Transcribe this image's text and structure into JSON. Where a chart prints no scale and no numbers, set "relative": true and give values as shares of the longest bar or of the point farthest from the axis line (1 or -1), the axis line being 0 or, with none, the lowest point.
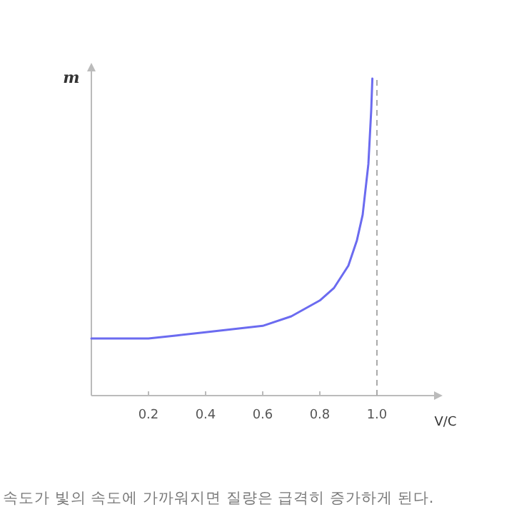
{
  "chart_data": {
    "type": "line",
    "x": [
      0,
      0.1,
      0.2,
      0.3,
      0.4,
      0.5,
      0.6,
      0.7,
      0.8,
      0.85,
      0.9,
      0.93,
      0.95,
      0.97,
      0.98,
      0.984
    ],
    "series": [
      {
        "color": "#6b6bf0",
        "values": [
          0.18,
          0.18,
          0.18,
          0.19,
          0.2,
          0.21,
          0.22,
          0.25,
          0.3,
          0.34,
          0.41,
          0.49,
          0.57,
          0.73,
          0.9,
          1
        ]
      }
    ],
    "relative": true,
    "xlim": [
      0,
      1.2
    ],
    "xticks": [
      0.2,
      0.4,
      0.6,
      0.8,
      {
        "value": 1.0,
        "label": "1.0"
      }
    ],
    "xlabel": "V/C",
    "ylabel": "m",
    "ref_lines": [
      {
        "axis": "x",
        "value": 1.0,
        "color": "#aaaaaa",
        "line_style": "dashed"
      }
    ],
    "annotations": [
      "속도가 빛의 속도에 가까워지면 질량은 급격히 증가하게 된다."
    ]
  }
}
